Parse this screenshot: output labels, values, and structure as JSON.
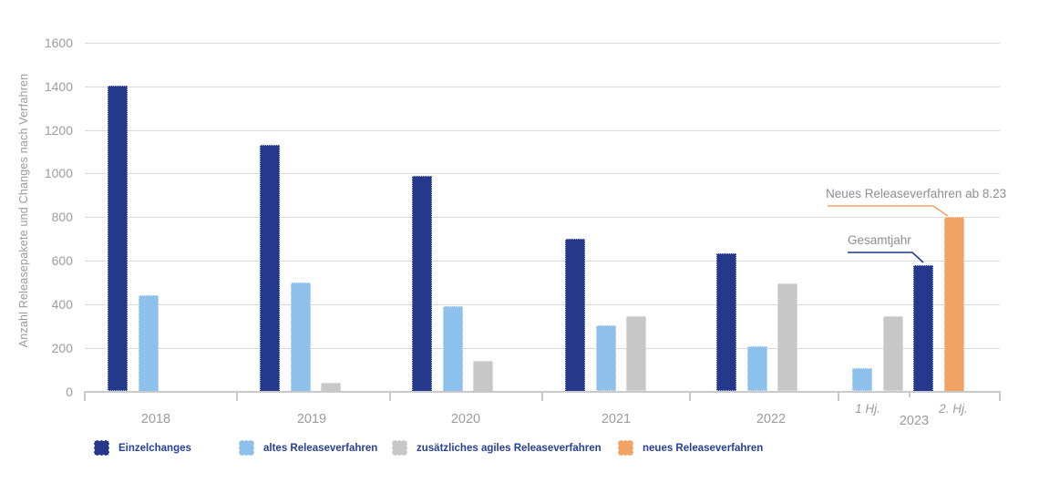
{
  "chart_data": {
    "type": "bar",
    "title": "",
    "xlabel": "",
    "ylabel": "Anzahl Releasepakete und Changes nach Verfahren",
    "ylim": [
      0,
      1600
    ],
    "yticks": [
      0,
      200,
      400,
      600,
      800,
      1000,
      1200,
      1400,
      1600
    ],
    "grid": true,
    "legend_position": "bottom",
    "series": [
      {
        "key": "einzelchanges",
        "name": "Einzelchanges",
        "color": "#24398c"
      },
      {
        "key": "altes",
        "name": "altes Releaseverfahren",
        "color": "#8dc0ea"
      },
      {
        "key": "agiles",
        "name": "zusätzliches agiles Releaseverfahren",
        "color": "#c7c7c7"
      },
      {
        "key": "neues",
        "name": "neues Releaseverfahren",
        "color": "#f2a263"
      }
    ],
    "groups": [
      {
        "label": "2018",
        "bars": [
          {
            "series": "einzelchanges",
            "value": 1405
          },
          {
            "series": "altes",
            "value": 440
          }
        ]
      },
      {
        "label": "2019",
        "bars": [
          {
            "series": "einzelchanges",
            "value": 1130
          },
          {
            "series": "altes",
            "value": 500
          },
          {
            "series": "agiles",
            "value": 40
          }
        ]
      },
      {
        "label": "2020",
        "bars": [
          {
            "series": "einzelchanges",
            "value": 990
          },
          {
            "series": "altes",
            "value": 390
          },
          {
            "series": "agiles",
            "value": 140
          }
        ]
      },
      {
        "label": "2021",
        "bars": [
          {
            "series": "einzelchanges",
            "value": 700
          },
          {
            "series": "altes",
            "value": 305
          },
          {
            "series": "agiles",
            "value": 345
          }
        ]
      },
      {
        "label": "2022",
        "bars": [
          {
            "series": "einzelchanges",
            "value": 635
          },
          {
            "series": "altes",
            "value": 205
          },
          {
            "series": "agiles",
            "value": 495
          }
        ]
      },
      {
        "label": "2023",
        "sublabels": [
          "1 Hj.",
          "2. Hj."
        ],
        "bars": [
          {
            "series": "altes",
            "value": 105
          },
          {
            "series": "agiles",
            "value": 345
          },
          {
            "series": "einzelchanges",
            "value": 580
          },
          {
            "series": "neues",
            "value": 800
          }
        ]
      }
    ],
    "annotations": [
      {
        "text": "Neues Releaseverfahren ab 8.23",
        "color": "#f2a263",
        "target": "neues-2023-bar"
      },
      {
        "text": "Gesamtjahr",
        "color": "#24398c",
        "target": "einzelchanges-2023-bar"
      }
    ]
  },
  "colors": {
    "grid": "#dadada",
    "axis": "#c9c9cb",
    "axis_text": "#9b9ba1",
    "annotation_text": "#8e8e96",
    "legend_text": "#27409b"
  }
}
